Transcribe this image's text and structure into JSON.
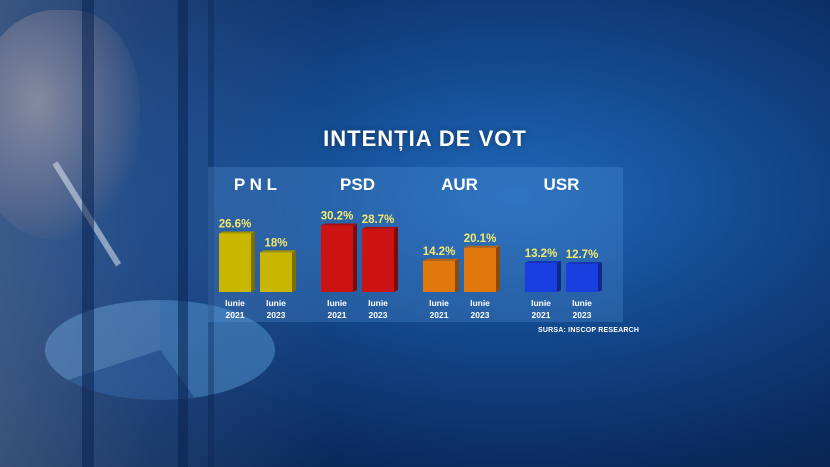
{
  "chart_data": {
    "type": "bar",
    "title": "INTENȚIA DE VOT",
    "source": "SURSA: INSCOP RESEARCH",
    "categories": [
      "P N L",
      "PSD",
      "AUR",
      "USR"
    ],
    "periods": [
      [
        "Iunie",
        "2021"
      ],
      [
        "Iunie",
        "2023"
      ]
    ],
    "series": [
      {
        "values": [
          26.6,
          30.2,
          14.2,
          13.2
        ],
        "labels": [
          "26.6%",
          "30.2%",
          "14.2%",
          "13.2%"
        ]
      },
      {
        "values": [
          18,
          28.7,
          20.1,
          12.7
        ],
        "labels": [
          "18%",
          "28.7%",
          "20.1%",
          "12.7%"
        ]
      }
    ],
    "colors": [
      "#c8b600",
      "#cc1212",
      "#e0780c",
      "#1a3fe0"
    ],
    "ylim": [
      0,
      35
    ],
    "grid": false
  }
}
